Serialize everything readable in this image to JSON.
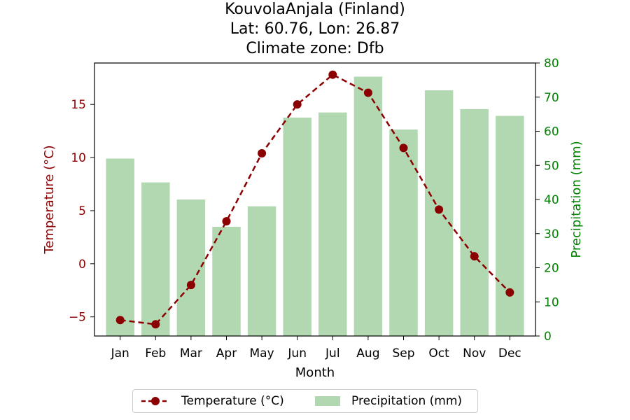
{
  "chart_data": {
    "type": "bar+line",
    "title_lines": [
      "KouvolaAnjala (Finland)",
      "Lat: 60.76, Lon: 26.87",
      "Climate zone: Dfb"
    ],
    "categories": [
      "Jan",
      "Feb",
      "Mar",
      "Apr",
      "May",
      "Jun",
      "Jul",
      "Aug",
      "Sep",
      "Oct",
      "Nov",
      "Dec"
    ],
    "xlabel": "Month",
    "y_left": {
      "label": "Temperature (°C)",
      "ylim": [
        -6.8,
        18.9
      ],
      "ticks": [
        -5,
        0,
        5,
        10,
        15
      ],
      "tick_labels": [
        "−5",
        "0",
        "5",
        "10",
        "15"
      ],
      "color": "#8b0000"
    },
    "y_right": {
      "label": "Precipitation (mm)",
      "ylim": [
        0,
        80
      ],
      "ticks": [
        0,
        10,
        20,
        30,
        40,
        50,
        60,
        70,
        80
      ],
      "tick_labels": [
        "0",
        "10",
        "20",
        "30",
        "40",
        "50",
        "60",
        "70",
        "80"
      ],
      "color": "#008000"
    },
    "series": [
      {
        "name": "Temperature (°C)",
        "kind": "line",
        "axis": "left",
        "color": "#8b0000",
        "values": [
          -5.3,
          -5.7,
          -2.0,
          4.0,
          10.4,
          15.0,
          17.8,
          16.1,
          10.9,
          5.1,
          0.7,
          -2.7
        ]
      },
      {
        "name": "Precipitation (mm)",
        "kind": "bar",
        "axis": "right",
        "color": "#b2d8b2",
        "values": [
          52,
          45,
          40,
          32,
          38,
          64,
          65.5,
          76,
          60.5,
          72,
          66.5,
          64.5
        ]
      }
    ],
    "legend_position": "bottom-center",
    "grid": false
  }
}
